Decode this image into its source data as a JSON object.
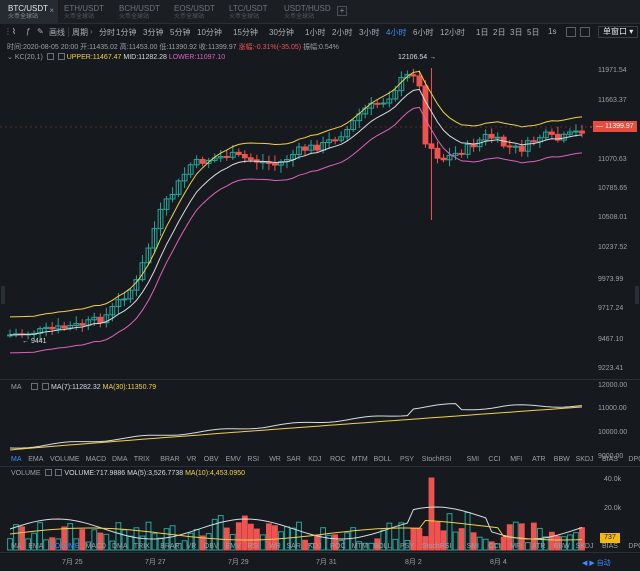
{
  "tabs": [
    {
      "pair": "BTC/USDT",
      "sub": "火币全球站",
      "active": true
    },
    {
      "pair": "ETH/USDT",
      "sub": "火币全球站",
      "active": false
    },
    {
      "pair": "BCH/USDT",
      "sub": "火币全球站",
      "active": false
    },
    {
      "pair": "EOS/USDT",
      "sub": "火币全球站",
      "active": false
    },
    {
      "pair": "LTC/USDT",
      "sub": "火币全球站",
      "active": false
    },
    {
      "pair": "USDT/HUSD",
      "sub": "火币全球站",
      "active": false
    }
  ],
  "tab_add": "+",
  "toolbar": {
    "draw": "画线",
    "period_label": "周期",
    "periods": [
      "分时",
      "1分钟",
      "3分钟",
      "5分钟",
      "10分钟",
      "15分钟",
      "30分钟",
      "1小时",
      "2小时",
      "3小时",
      "4小时",
      "6小时",
      "12小时",
      "1日",
      "2日",
      "3日",
      "5日"
    ],
    "active_period": "4小时",
    "interval_1s": "1s",
    "window_select": "单窗口"
  },
  "ohlc": {
    "time": "时间:2020-08-05 20:00",
    "open": "开:11435.02",
    "high": "高:11453.00",
    "low": "低:11390.92",
    "close": "收:11399.97",
    "change": "涨幅:-0.31%(-35.05)",
    "amplitude": "振幅:0.54%"
  },
  "kc": {
    "name": "KC(20,1)",
    "upper": "UPPER:11467.47",
    "mid": "MID:11282.28",
    "lower": "LOWER:11097.10"
  },
  "ma_panel": {
    "name": "MA",
    "ma7": "MA(7):11282.32",
    "ma30": "MA(30):11350.79"
  },
  "volume_panel": {
    "name": "VOLUME",
    "vol": "VOLUME:717.9886",
    "ma5": "MA(5):3,526.7738",
    "ma10": "MA(10):4,453.0950"
  },
  "main_axis": [
    "11971.54",
    "11663.37",
    "11070.63",
    "10785.65",
    "10508.01",
    "10237.52",
    "9973.99",
    "9717.24",
    "9467.10",
    "9223.41"
  ],
  "current_price": "11399.97",
  "high_annotation": "12106.54 →",
  "low_annotation": "← 9441",
  "ma_axis": [
    "12000.00",
    "11000.00",
    "10000.00",
    "9000.00"
  ],
  "vol_axis": [
    "40.0k",
    "20.0k"
  ],
  "vol_tag": "737",
  "indicators_a": [
    "MA",
    "EMA",
    "VOLUME",
    "MACD",
    "DMA",
    "TRIX",
    "BRAR",
    "VR",
    "OBV",
    "EMV",
    "RSI",
    "WR",
    "SAR",
    "KDJ",
    "ROC",
    "MTM",
    "BOLL",
    "PSY",
    "StochRSI",
    "SMI",
    "CCI",
    "MFI",
    "ATR",
    "BBW",
    "SKDJ",
    "BIAS",
    "DPO",
    "AO"
  ],
  "indicators_a_active": "MA",
  "indicators_b": [
    "MA",
    "EMA",
    "VOLUME",
    "MACD",
    "DMA",
    "TRIX",
    "BRAR",
    "VR",
    "OBV",
    "EMV",
    "RSI",
    "WR",
    "SAR",
    "KDJ",
    "ROC",
    "MTM",
    "BOLL",
    "PSY",
    "StochRSI",
    "SMI",
    "CCI",
    "MFI",
    "ATR",
    "BBW",
    "SKDJ",
    "BIAS",
    "DPO",
    "AO"
  ],
  "indicators_b_active": "VOLUME",
  "date_axis": [
    "7月 25",
    "7月 27",
    "7月 29",
    "7月 31",
    "8月 2",
    "8月 4"
  ],
  "bottom_controls": "◀ ▶ 自动",
  "colors": {
    "up": "#26a69a",
    "down": "#ef5350",
    "kc_upper": "#f0d050",
    "kc_mid": "#d8dbe0",
    "kc_lower": "#e060c0",
    "accent": "#3d8bff"
  }
}
